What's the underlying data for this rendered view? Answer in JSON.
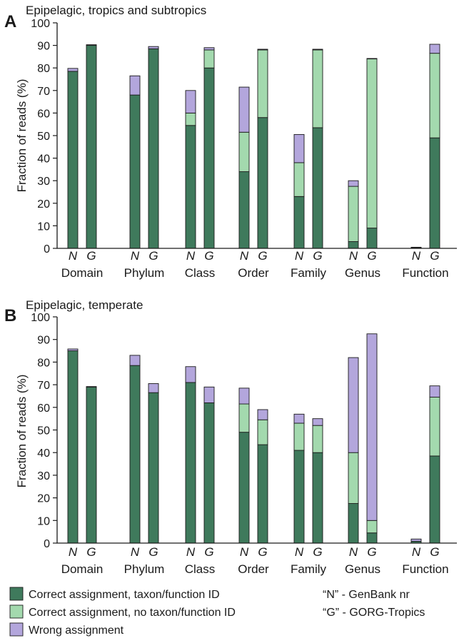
{
  "colors": {
    "correct_id": "#3f7a5c",
    "correct_noid": "#a3d9ae",
    "wrong": "#b3a6dc"
  },
  "chart_data": [
    {
      "type": "bar",
      "stacked": true,
      "panel_letter": "A",
      "title": "Epipelagic, tropics and subtropics",
      "ylabel": "Fraction of reads (%)",
      "ylim": [
        0,
        100
      ],
      "yticks": [
        0,
        10,
        20,
        30,
        40,
        50,
        60,
        70,
        80,
        90,
        100
      ],
      "categories": [
        "Domain",
        "Phylum",
        "Class",
        "Order",
        "Family",
        "Genus",
        "Function"
      ],
      "bar_labels": [
        "N",
        "G"
      ],
      "series": [
        {
          "name": "Correct assignment, taxon/function ID",
          "N": [
            78.5,
            68,
            54.5,
            34,
            23,
            3,
            0.3
          ],
          "G": [
            90,
            88.5,
            80,
            58,
            53.5,
            9,
            49
          ]
        },
        {
          "name": "Correct assignment, no taxon/function ID",
          "N": [
            0,
            0,
            5.5,
            17.5,
            15,
            24.5,
            0
          ],
          "G": [
            0,
            0,
            8,
            30,
            34.5,
            75,
            37.5
          ]
        },
        {
          "name": "Wrong assignment",
          "N": [
            1.3,
            8.5,
            10,
            20,
            12.5,
            2.5,
            0.2
          ],
          "G": [
            0.3,
            1,
            1,
            0.3,
            0.3,
            0.2,
            4
          ]
        }
      ]
    },
    {
      "type": "bar",
      "stacked": true,
      "panel_letter": "B",
      "title": "Epipelagic, temperate",
      "ylabel": "Fraction of reads (%)",
      "ylim": [
        0,
        100
      ],
      "yticks": [
        0,
        10,
        20,
        30,
        40,
        50,
        60,
        70,
        80,
        90,
        100
      ],
      "categories": [
        "Domain",
        "Phylum",
        "Class",
        "Order",
        "Family",
        "Genus",
        "Function"
      ],
      "bar_labels": [
        "N",
        "G"
      ],
      "series": [
        {
          "name": "Correct assignment, taxon/function ID",
          "N": [
            85,
            78.5,
            71,
            49,
            41,
            17.5,
            0.8
          ],
          "G": [
            69,
            66.5,
            62,
            43.5,
            40,
            4.5,
            38.5
          ]
        },
        {
          "name": "Correct assignment, no taxon/function ID",
          "N": [
            0,
            0,
            0,
            12.5,
            12,
            22.5,
            0
          ],
          "G": [
            0,
            0,
            0,
            11,
            12,
            5.5,
            26
          ]
        },
        {
          "name": "Wrong assignment",
          "N": [
            0.8,
            4.5,
            7,
            7,
            4,
            42,
            1
          ],
          "G": [
            0.2,
            4,
            7,
            4.5,
            3,
            82.5,
            5
          ]
        }
      ]
    }
  ],
  "legend": {
    "items": [
      "Correct assignment, taxon/function ID",
      "Correct assignment, no taxon/function ID",
      "Wrong assignment"
    ],
    "notes": [
      "“N” - GenBank nr",
      "“G” - GORG-Tropics"
    ]
  }
}
